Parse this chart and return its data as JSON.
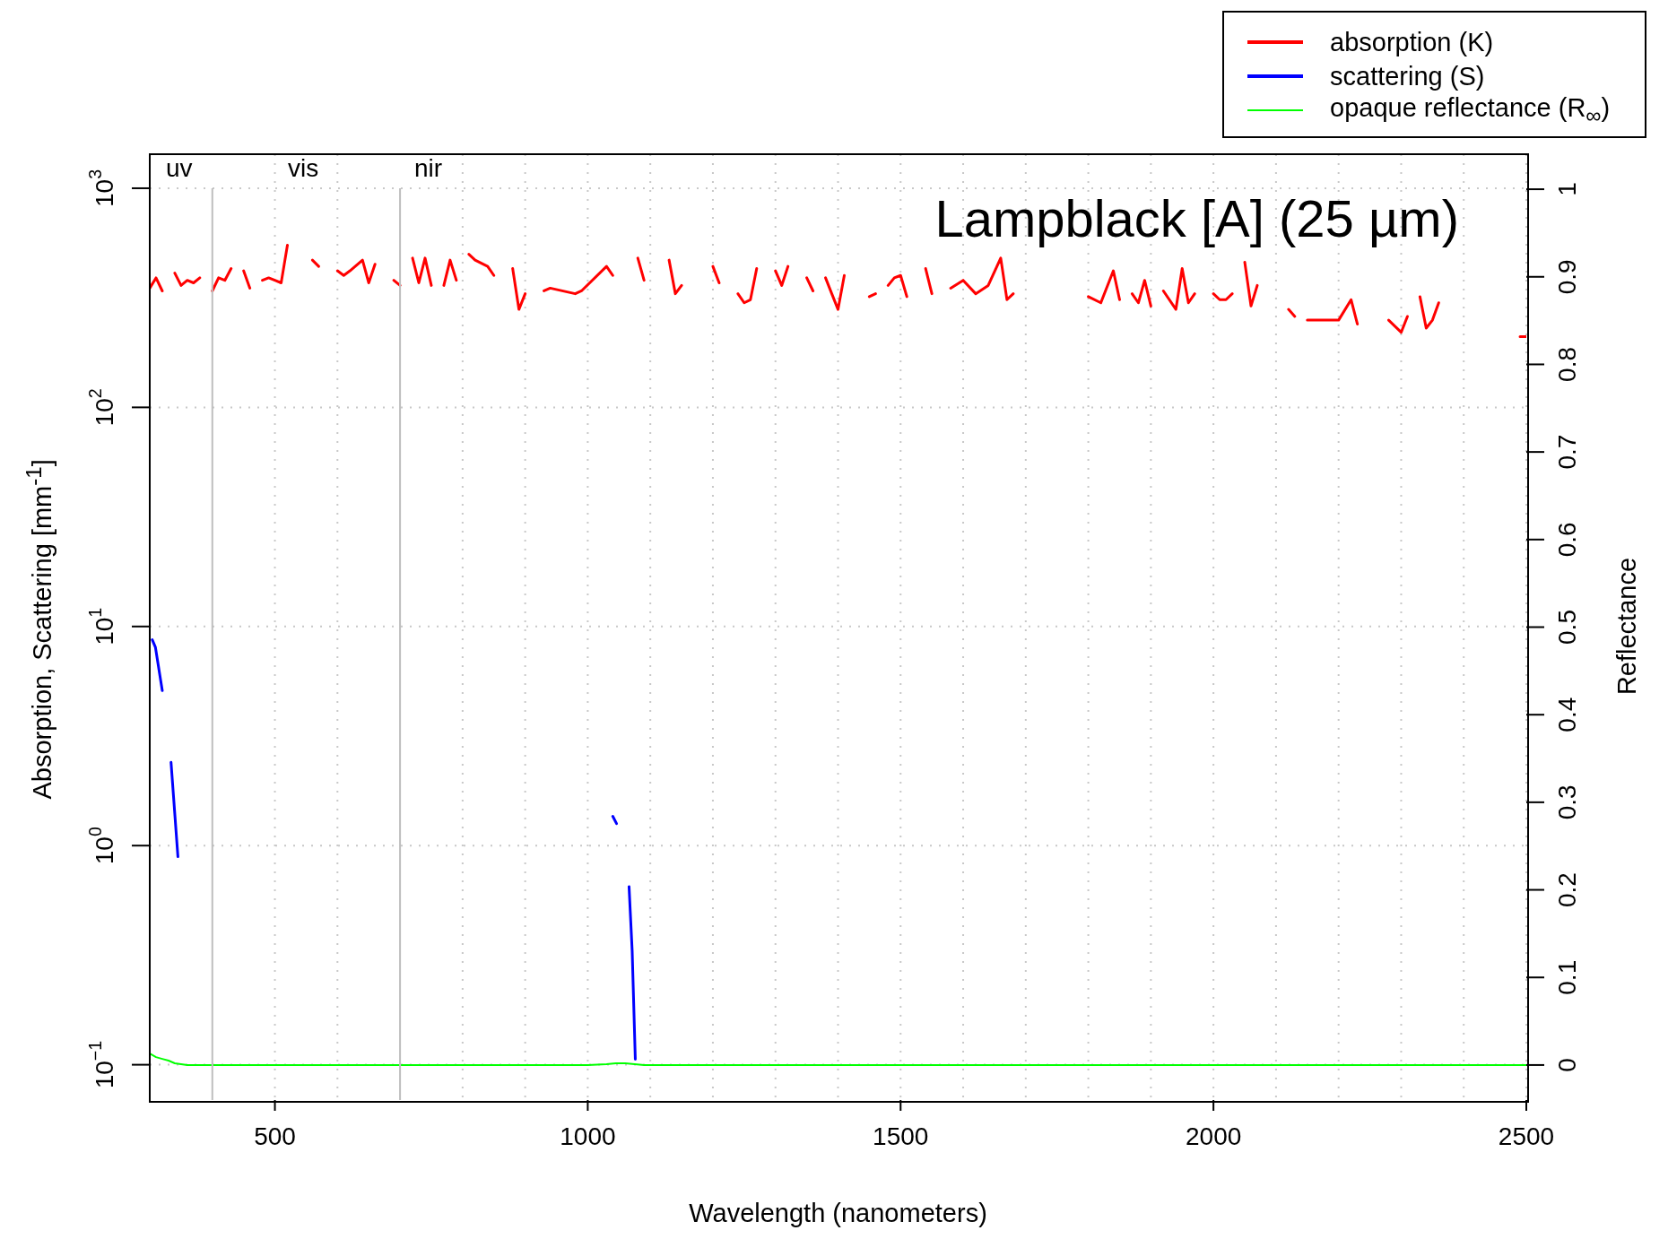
{
  "chart_data": {
    "type": "line",
    "title": "Lampblack [A] (25 µm)",
    "xlabel": "Wavelength (nanometers)",
    "ylabel": "Absorption, Scattering [mm$^{-1}$]",
    "y2label": "Reflectance",
    "log": "y",
    "grid": true,
    "legend": "top right",
    "marker": "none",
    "line_style": "solid",
    "xlim": [
      300,
      2500
    ],
    "ylim": [
      0.069,
      1430
    ],
    "y2lim": [
      -0.04,
      1.04
    ],
    "xticks": [
      {
        "value": 500,
        "label": "500"
      },
      {
        "value": 600,
        "label": null
      },
      {
        "value": 800,
        "label": null
      },
      {
        "value": 900,
        "label": null
      },
      {
        "value": 1000,
        "label": "1000"
      },
      {
        "value": 1100,
        "label": null
      },
      {
        "value": 1200,
        "label": null
      },
      {
        "value": 1300,
        "label": null
      },
      {
        "value": 1400,
        "label": null
      },
      {
        "value": 1500,
        "label": "1500"
      },
      {
        "value": 1600,
        "label": null
      },
      {
        "value": 1700,
        "label": null
      },
      {
        "value": 1800,
        "label": null
      },
      {
        "value": 1900,
        "label": null
      },
      {
        "value": 2000,
        "label": "2000"
      },
      {
        "value": 2100,
        "label": null
      },
      {
        "value": 2200,
        "label": null
      },
      {
        "value": 2300,
        "label": null
      },
      {
        "value": 2400,
        "label": null
      },
      {
        "value": 2500,
        "label": "2500"
      }
    ],
    "yticks": [
      {
        "value": 0.1,
        "label": "10$^{−1}$"
      },
      {
        "value": 1,
        "label": "10$^{0}$"
      },
      {
        "value": 10,
        "label": "10$^{1}$"
      },
      {
        "value": 100,
        "label": "10$^{2}$"
      },
      {
        "value": 1000,
        "label": "10$^{3}$"
      }
    ],
    "y2ticks": [
      0,
      0.1,
      0.2,
      0.3,
      0.4,
      0.5,
      0.6,
      0.7,
      0.8,
      0.9,
      1
    ],
    "ref_lines": [
      {
        "axis": "x",
        "value": 400,
        "color": "#bebebe"
      },
      {
        "axis": "x",
        "value": 700,
        "color": "#bebebe"
      }
    ],
    "annotations": [
      "uv",
      "vis",
      "nir"
    ],
    "series": [
      {
        "name": "absorption (K)",
        "color": "#ff0000",
        "x": [
          300,
          310,
          320,
          330,
          340,
          350,
          360,
          370,
          380,
          390,
          400,
          410,
          420,
          430,
          440,
          450,
          460,
          470,
          480,
          490,
          500,
          510,
          520,
          530,
          560,
          570,
          580,
          600,
          610,
          620,
          640,
          650,
          660,
          670,
          690,
          700,
          710,
          720,
          730,
          740,
          750,
          760,
          770,
          780,
          790,
          800,
          810,
          820,
          840,
          850,
          860,
          880,
          890,
          900,
          910,
          930,
          940,
          980,
          990,
          1030,
          1040,
          1050,
          1080,
          1090,
          1100,
          1130,
          1140,
          1150,
          1160,
          1200,
          1210,
          1220,
          1240,
          1250,
          1260,
          1270,
          1280,
          1300,
          1310,
          1320,
          1330,
          1350,
          1360,
          1370,
          1380,
          1390,
          1400,
          1410,
          1420,
          1450,
          1460,
          1470,
          1480,
          1490,
          1500,
          1510,
          1520,
          1540,
          1550,
          1560,
          1580,
          1600,
          1620,
          1640,
          1660,
          1670,
          1680,
          1690,
          1800,
          1820,
          1840,
          1850,
          1860,
          1870,
          1880,
          1890,
          1900,
          1910,
          1920,
          1940,
          1950,
          1960,
          1970,
          1980,
          2000,
          2010,
          2020,
          2030,
          2040,
          2050,
          2060,
          2070,
          2080,
          2120,
          2130,
          2140,
          2150,
          2160,
          2200,
          2220,
          2230,
          2240,
          2280,
          2300,
          2310,
          2320,
          2330,
          2340,
          2350,
          2360,
          2370,
          2490,
          2500
        ],
        "values": [
          350,
          390,
          340,
          null,
          410,
          360,
          380,
          370,
          390,
          null,
          340,
          390,
          380,
          430,
          null,
          420,
          350,
          null,
          380,
          390,
          380,
          370,
          550,
          null,
          470,
          440,
          null,
          420,
          400,
          420,
          470,
          370,
          450,
          null,
          380,
          360,
          null,
          480,
          370,
          480,
          360,
          null,
          360,
          470,
          380,
          null,
          500,
          470,
          440,
          400,
          null,
          430,
          280,
          330,
          null,
          340,
          350,
          330,
          340,
          440,
          400,
          null,
          480,
          380,
          null,
          470,
          330,
          360,
          null,
          440,
          370,
          null,
          330,
          300,
          310,
          430,
          null,
          420,
          360,
          440,
          null,
          390,
          340,
          null,
          390,
          330,
          280,
          400,
          null,
          320,
          330,
          null,
          360,
          390,
          400,
          320,
          null,
          430,
          330,
          null,
          350,
          380,
          330,
          360,
          480,
          310,
          330,
          null,
          320,
          300,
          420,
          310,
          null,
          330,
          300,
          380,
          290,
          null,
          340,
          280,
          430,
          300,
          330,
          null,
          330,
          310,
          310,
          330,
          null,
          460,
          290,
          360,
          null,
          280,
          260,
          null,
          250,
          250,
          250,
          310,
          240,
          null,
          250,
          220,
          260,
          null,
          320,
          230,
          250,
          300,
          null,
          210,
          210
        ]
      },
      {
        "name": "scattering (S)",
        "color": "#0000ff",
        "x": [
          304,
          309,
          320,
          327,
          334,
          345,
          350,
          1040,
          1046,
          1055,
          1066,
          1071,
          1076
        ],
        "values": [
          8.7,
          8.05,
          5.1,
          null,
          2.4,
          0.89,
          null,
          1.36,
          1.26,
          null,
          0.65,
          0.33,
          0.106
        ]
      },
      {
        "name": "opaque reflectance (R$_{∞}$)",
        "color": "#00ff00",
        "axis": "y2",
        "x": [
          300,
          310,
          320,
          330,
          340,
          350,
          360,
          1000,
          1030,
          1045,
          1060,
          1075,
          1090,
          2500
        ],
        "values": [
          0.013,
          0.009,
          0.007,
          0.005,
          0.002,
          0.001,
          0,
          0,
          0.001,
          0.002,
          0.002,
          0.001,
          0,
          0
        ]
      }
    ]
  }
}
